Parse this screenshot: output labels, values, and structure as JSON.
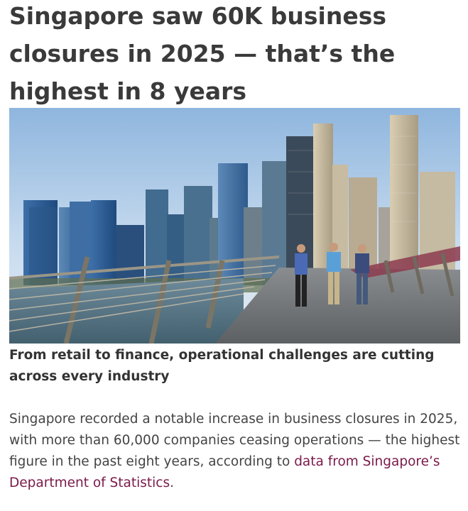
{
  "article": {
    "headline": "Singapore saw 60K business closures in 2025 — that’s the highest in 8 years",
    "image_description_icon": "photo-singapore-skyline-bridge",
    "caption": "From retail to finance, operational challenges are cutting across every industry",
    "body": {
      "text_before_link": "Singapore recorded a notable increase in business closures in 2025, with more than 60,000 companies ceasing operations — the highest figure in the past eight years, according to ",
      "link_text": "data from Singapore’s Department of Statistics",
      "text_after_link": "."
    },
    "colors": {
      "headline": "#3a3a3a",
      "link": "#7a1a4a",
      "body": "#444444"
    }
  }
}
